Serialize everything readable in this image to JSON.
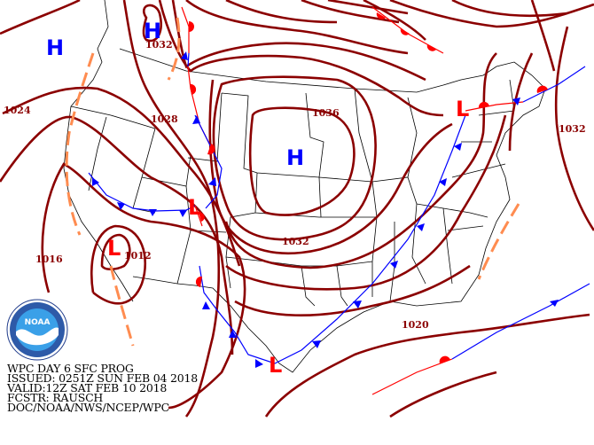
{
  "product": {
    "title": "WPC DAY 6 SFC PROG",
    "issued": "ISSUED: 0251Z SUN FEB 04 2018",
    "valid": "VALID:12Z SAT FEB 10 2018",
    "forecaster": "FCSTR: RAUSCH",
    "agency": "DOC/NOAA/NWS/NCEP/WPC"
  },
  "logo": {
    "text": "NOAA",
    "ring_text": "NATIONAL OCEANIC AND ATMOSPHERIC ADMINISTRATION"
  },
  "isobar_labels": [
    "1032",
    "1024",
    "1028",
    "1036",
    "1032",
    "1016",
    "1012",
    "1020",
    "1032"
  ],
  "pressure_centers": {
    "high": "H",
    "low": "L"
  },
  "colors": {
    "isobar": "#8b0000",
    "high": "#0000ff",
    "low": "#ff0000",
    "cold_front": "#0000ff",
    "warm_front": "#ff0000",
    "trough": "#ff8c50"
  }
}
